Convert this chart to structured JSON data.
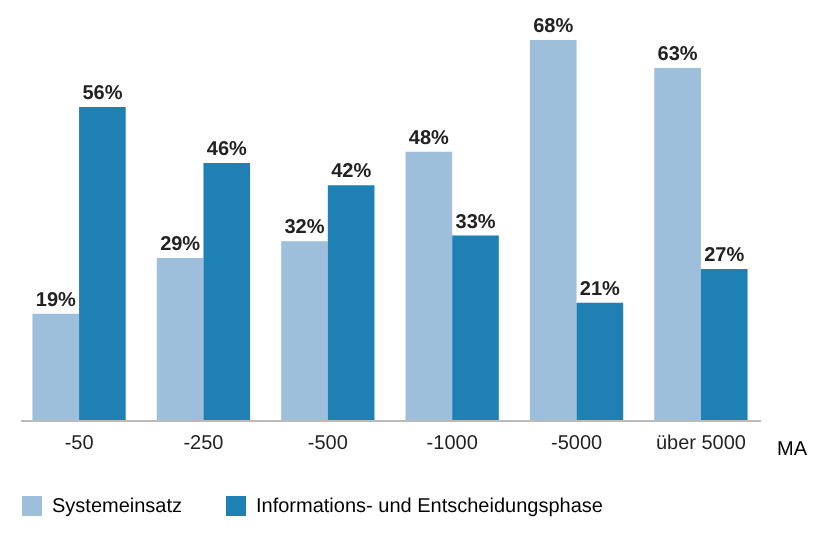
{
  "chart_data": {
    "type": "bar",
    "xlabel": "MA",
    "categories": [
      "-50",
      "-250",
      "-500",
      "-1000",
      "-5000",
      "über 5000"
    ],
    "series": [
      {
        "name": "Systemeinsatz",
        "color": "#9dbfdc",
        "values": [
          19,
          29,
          32,
          48,
          68,
          63
        ],
        "value_labels": [
          "19%",
          "29%",
          "32%",
          "48%",
          "68%",
          "63%"
        ]
      },
      {
        "name": "Informations- und Entscheidungsphase",
        "color": "#1f80b3",
        "values": [
          56,
          46,
          42,
          33,
          21,
          27
        ],
        "value_labels": [
          "56%",
          "46%",
          "42%",
          "33%",
          "21%",
          "27%"
        ]
      }
    ],
    "legend": "bottom"
  }
}
